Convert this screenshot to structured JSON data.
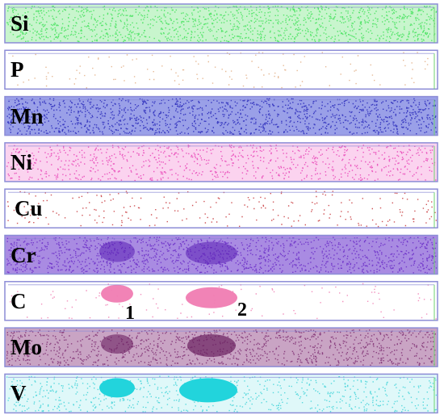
{
  "maps": [
    {
      "element": "Si",
      "color": "#42e25a",
      "bg": "#c8f5cd",
      "density": 0.95
    },
    {
      "element": "P",
      "color": "#e2ad82",
      "bg": "#ffffff",
      "density": 0.05
    },
    {
      "element": "Mn",
      "color": "#2727b8",
      "bg": "#9aa0e8",
      "density": 0.95
    },
    {
      "element": "Ni",
      "color": "#e83fb5",
      "bg": "#fbd3ef",
      "density": 0.55
    },
    {
      "element": "Cu",
      "color": "#c7363a",
      "bg": "#ffffff",
      "density": 0.12
    },
    {
      "element": "Cr",
      "color": "#6a2cc7",
      "bg": "#a98be2",
      "density": 0.95
    },
    {
      "element": "C",
      "color": "#f07cb2",
      "bg": "#ffffff",
      "density": 0.03
    },
    {
      "element": "Mo",
      "color": "#7f2f73",
      "bg": "#c9a4c4",
      "density": 0.75
    },
    {
      "element": "V",
      "color": "#3fd2d8",
      "bg": "#dff8f9",
      "density": 0.45
    }
  ],
  "markers": [
    "1",
    "2"
  ],
  "frame_color": "#8c8cd6"
}
